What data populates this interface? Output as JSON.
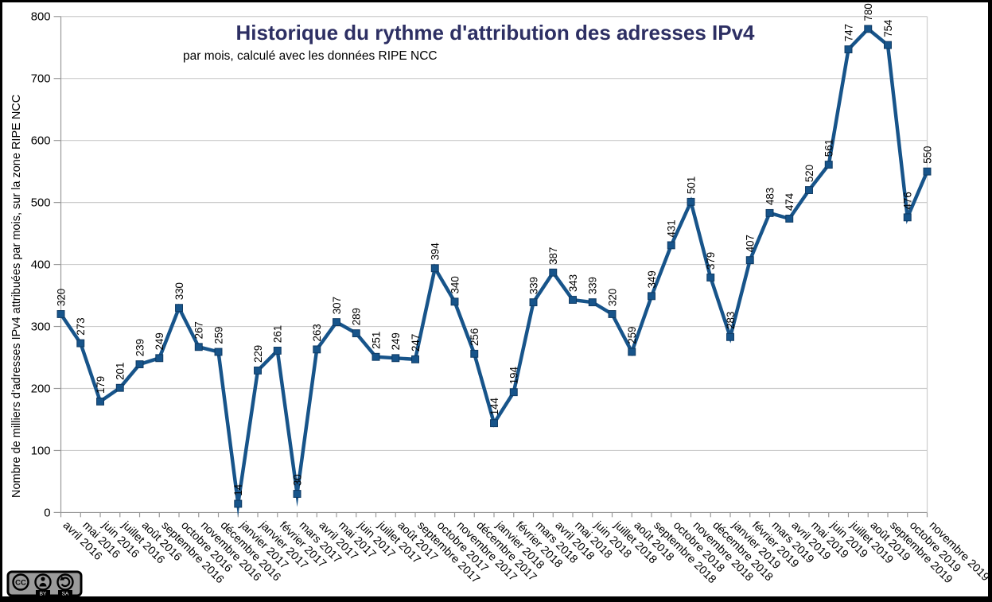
{
  "colors": {
    "line": "#17548a",
    "marker_border": "#0f3a63",
    "title_text": "#2d2f63",
    "grid": "#cdcdcd",
    "axis": "#999999",
    "text": "#000000",
    "badge_bg": "#9b9b9b",
    "background": "#ffffff",
    "border": "#000000"
  },
  "license_badge": {
    "cc": "CC",
    "by": "BY",
    "sa": "SA"
  },
  "chart_data": {
    "type": "line",
    "title": "Historique du rythme d'attribution des adresses IPv4",
    "subtitle": "par mois, calculé avec les données RIPE NCC",
    "ylabel": "Nombre de milliers d'adresses IPv4 attribuées par mois, sur la zone RIPE NCC",
    "xlabel": "",
    "ylim": [
      0,
      800
    ],
    "yticks": [
      0,
      100,
      200,
      300,
      400,
      500,
      600,
      700,
      800
    ],
    "grid": "horizontal",
    "legend": "none",
    "point_labels_visible": true,
    "categories": [
      "avril 2016",
      "mai 2016",
      "juin 2016",
      "juillet 2016",
      "août 2016",
      "septembre 2016",
      "octobre 2016",
      "novembre 2016",
      "décembre 2016",
      "janvier 2017",
      "janvier 2017",
      "février 2017",
      "mars 2017",
      "avril 2017",
      "mai 2017",
      "juin 2017",
      "juillet 2017",
      "août 2017",
      "septembre 2017",
      "octobre 2017",
      "novembre 2017",
      "décembre 2017",
      "janvier 2018",
      "février 2018",
      "mars 2018",
      "avril 2018",
      "mai 2018",
      "juin 2018",
      "juillet 2018",
      "août 2018",
      "septembre 2018",
      "octobre 2018",
      "novembre 2018",
      "décembre 2018",
      "janvier 2019",
      "février 2019",
      "mars 2019",
      "avril 2019",
      "mai 2019",
      "juin 2019",
      "juillet 2019",
      "août 2019",
      "septembre 2019",
      "octobre 2019",
      "novembre 2019"
    ],
    "values": [
      320,
      273,
      179,
      201,
      239,
      249,
      330,
      267,
      259,
      14,
      229,
      261,
      30,
      263,
      307,
      289,
      251,
      249,
      247,
      394,
      340,
      256,
      144,
      194,
      339,
      387,
      343,
      339,
      320,
      259,
      349,
      431,
      501,
      379,
      283,
      407,
      483,
      474,
      520,
      561,
      747,
      780,
      754,
      476,
      550
    ]
  }
}
